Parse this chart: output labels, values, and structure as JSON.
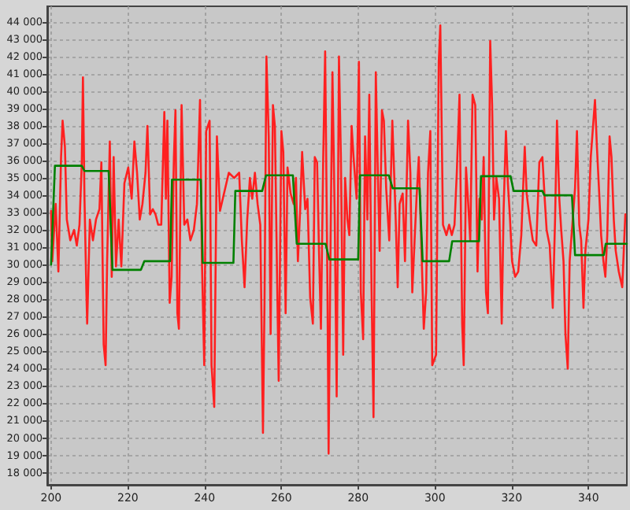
{
  "chart_data": {
    "type": "line",
    "grid": true,
    "marker": "none",
    "xlim": [
      199,
      350
    ],
    "xticks": [
      200,
      220,
      240,
      260,
      280,
      300,
      320,
      340
    ],
    "ylim": [
      17300,
      44900
    ],
    "yticks": [
      {
        "value": 18000,
        "label": "18 000"
      },
      {
        "value": 19000,
        "label": "19 000"
      },
      {
        "value": 20000,
        "label": "20 000"
      },
      {
        "value": 21000,
        "label": "21 000"
      },
      {
        "value": 22000,
        "label": "22 000"
      },
      {
        "value": 23000,
        "label": "23 000"
      },
      {
        "value": 24000,
        "label": "24 000"
      },
      {
        "value": 25000,
        "label": "25 000"
      },
      {
        "value": 26000,
        "label": "26 000"
      },
      {
        "value": 27000,
        "label": "27 000"
      },
      {
        "value": 28000,
        "label": "28 000"
      },
      {
        "value": 29000,
        "label": "29 000"
      },
      {
        "value": 30000,
        "label": "30 000"
      },
      {
        "value": 31000,
        "label": "31 000"
      },
      {
        "value": 32000,
        "label": "32 000"
      },
      {
        "value": 33000,
        "label": "33 000"
      },
      {
        "value": 34000,
        "label": "34 000"
      },
      {
        "value": 35000,
        "label": "35 000"
      },
      {
        "value": 36000,
        "label": "36 000"
      },
      {
        "value": 37000,
        "label": "37 000"
      },
      {
        "value": 38000,
        "label": "38 000"
      },
      {
        "value": 39000,
        "label": "39 000"
      },
      {
        "value": 40000,
        "label": "40 000"
      },
      {
        "value": 41000,
        "label": "41 000"
      },
      {
        "value": 42000,
        "label": "42 000"
      },
      {
        "value": 43000,
        "label": "43 000"
      },
      {
        "value": 44000,
        "label": "44 000"
      }
    ],
    "series": [
      {
        "color": "#ff2020",
        "x": [
          200,
          200.3,
          201.2,
          201.9,
          202.6,
          203,
          203.6,
          204.1,
          205,
          206,
          206.7,
          207.4,
          208,
          208.3,
          208.7,
          209.2,
          209.4,
          210.1,
          210.9,
          211.7,
          212.6,
          213.1,
          213.7,
          214.2,
          214.6,
          215.3,
          215.8,
          216.3,
          216.9,
          217.6,
          218.3,
          219.1,
          220.1,
          221,
          221.7,
          222.4,
          223.1,
          223.8,
          224.6,
          225.1,
          225.8,
          226.5,
          227.2,
          227.9,
          228.7,
          229.5,
          229.9,
          230.3,
          230.9,
          231.4,
          232,
          232.4,
          232.9,
          233.3,
          234,
          234.7,
          235.5,
          236.3,
          237.2,
          238,
          238.8,
          239.3,
          239.9,
          240.4,
          241.3,
          241.8,
          242.5,
          243.2,
          244,
          246.3,
          247.7,
          249,
          249.7,
          250.4,
          251.1,
          251.8,
          252.4,
          253.1,
          253.8,
          254.5,
          255.2,
          255.6,
          256.1,
          256.7,
          257.2,
          257.8,
          258.3,
          258.9,
          259.3,
          260,
          260.5,
          261.1,
          261.6,
          262.4,
          263.2,
          263.8,
          264.3,
          264.9,
          265.4,
          266.2,
          266.8,
          267.5,
          268.2,
          268.7,
          269.3,
          269.8,
          270.3,
          270.9,
          271.4,
          272,
          272.3,
          272.8,
          273.3,
          273.9,
          274.4,
          275,
          275.5,
          276.1,
          276.6,
          277.2,
          277.7,
          278.3,
          278.8,
          279.6,
          280.2,
          280.7,
          281.3,
          281.8,
          282.4,
          282.9,
          283.5,
          284,
          284.6,
          285.1,
          285.6,
          286.2,
          286.7,
          287.3,
          288.1,
          288.9,
          289.7,
          290.3,
          290.8,
          291.6,
          292.2,
          293,
          293.6,
          294.1,
          294.7,
          295.2,
          295.8,
          296.3,
          297.1,
          297.7,
          298.2,
          298.8,
          299.3,
          300.3,
          301,
          301.4,
          302.1,
          303,
          303.7,
          304.4,
          305.1,
          305.7,
          306.4,
          307.1,
          307.5,
          308.1,
          308.6,
          309.2,
          309.8,
          310.5,
          311.1,
          311.6,
          312.2,
          312.7,
          313.3,
          313.8,
          314.4,
          314.9,
          315.4,
          316,
          316.7,
          317.4,
          317.9,
          318.5,
          319,
          319.5,
          320.1,
          320.9,
          321.7,
          322.5,
          323.4,
          323.9,
          324.7,
          325.5,
          326.4,
          327.2,
          328,
          328.6,
          329.1,
          329.9,
          330.7,
          331.3,
          331.8,
          332.4,
          332.9,
          333.5,
          334,
          334.6,
          335.1,
          335.9,
          336.5,
          337,
          337.6,
          338.1,
          338.7,
          339.2,
          340,
          340.6,
          341.1,
          341.7,
          342.2,
          342.8,
          343.3,
          343.9,
          344.4,
          344.9,
          345.5,
          346,
          346.6,
          347.1,
          347.9,
          348.8,
          349.6
        ],
        "values": [
          33100,
          30200,
          33500,
          29600,
          36200,
          38300,
          36800,
          32600,
          31400,
          32000,
          31100,
          32300,
          35900,
          40800,
          33800,
          28400,
          26600,
          32600,
          31400,
          32600,
          33200,
          35900,
          25400,
          24200,
          30200,
          37100,
          29300,
          36200,
          29900,
          32600,
          29900,
          34700,
          35600,
          33800,
          37100,
          35300,
          32600,
          33500,
          35300,
          38000,
          32900,
          33200,
          32900,
          32300,
          32300,
          38800,
          33800,
          38300,
          27800,
          29300,
          36200,
          38900,
          27200,
          26300,
          39200,
          32300,
          32600,
          31400,
          32000,
          33500,
          39500,
          30200,
          24200,
          37700,
          38300,
          24200,
          21800,
          37400,
          33100,
          35300,
          35000,
          35300,
          31400,
          28700,
          32600,
          35000,
          33800,
          35300,
          33500,
          32300,
          20300,
          27800,
          42000,
          37400,
          26000,
          39200,
          38000,
          29000,
          23300,
          37700,
          36500,
          27200,
          35600,
          34100,
          33500,
          35000,
          30200,
          33200,
          36500,
          33200,
          33800,
          28100,
          26600,
          36200,
          35900,
          30800,
          26300,
          36200,
          42300,
          28700,
          19100,
          31100,
          41100,
          32600,
          22400,
          42000,
          36200,
          24800,
          35000,
          32600,
          31700,
          38000,
          36200,
          33800,
          41700,
          28400,
          25700,
          37400,
          32600,
          39800,
          28400,
          21200,
          41100,
          35600,
          30800,
          38900,
          38300,
          34400,
          31400,
          38300,
          33200,
          28700,
          33500,
          34100,
          30200,
          38300,
          35300,
          28400,
          31400,
          33800,
          36200,
          32300,
          26300,
          28400,
          35300,
          37700,
          24200,
          24800,
          41700,
          43800,
          32300,
          31700,
          32300,
          31700,
          32300,
          35300,
          39800,
          26600,
          24200,
          35600,
          33800,
          31400,
          39800,
          39200,
          29600,
          33800,
          32600,
          36200,
          28400,
          27200,
          42900,
          39200,
          32600,
          35000,
          33800,
          26600,
          33200,
          37700,
          34700,
          32900,
          30200,
          29300,
          29600,
          31700,
          36800,
          34100,
          32600,
          31400,
          31100,
          35900,
          36200,
          33800,
          32000,
          31100,
          27500,
          32600,
          38300,
          33800,
          32000,
          30200,
          26000,
          24000,
          30200,
          32600,
          34400,
          37700,
          32300,
          31400,
          27500,
          30800,
          32600,
          36200,
          37700,
          39500,
          36800,
          34100,
          31700,
          30200,
          29300,
          31700,
          37400,
          36200,
          32600,
          30800,
          29600,
          28700,
          32900
        ]
      },
      {
        "color": "#008000",
        "x": [
          200,
          201,
          208,
          208.7,
          215,
          216,
          223.4,
          224.3,
          231,
          231.5,
          239,
          239.5,
          247.5,
          248,
          255,
          256,
          263,
          264,
          271.5,
          272.5,
          280,
          280.5,
          288,
          289,
          296,
          296.8,
          303.7,
          304.5,
          311.5,
          312,
          319.7,
          320.5,
          328,
          328.5,
          335.7,
          336.5,
          344,
          344.5,
          350
        ],
        "values": [
          30000,
          35700,
          35700,
          35400,
          35400,
          29700,
          29700,
          30200,
          30200,
          34900,
          34900,
          30100,
          30100,
          34250,
          34250,
          35150,
          35150,
          31200,
          31200,
          30300,
          30300,
          35150,
          35150,
          34400,
          34400,
          30200,
          30200,
          31350,
          31350,
          35100,
          35100,
          34250,
          34250,
          34000,
          34000,
          30550,
          30550,
          31200,
          31200
        ]
      }
    ]
  }
}
